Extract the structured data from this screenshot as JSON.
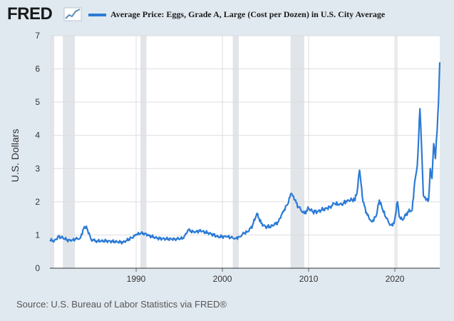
{
  "header": {
    "logo_text": "FRED",
    "logo_icon": "trend-line-icon"
  },
  "colors": {
    "background": "#e1e9f0",
    "plot_background": "#ffffff",
    "series_line": "#2b7bd6",
    "recession_band": "#e1e5ea",
    "grid": "#dddddd"
  },
  "footer": {
    "source": "Source: U.S. Bureau of Labor Statistics via FRED®"
  },
  "chart_data": {
    "type": "line",
    "title": "",
    "xlabel": "",
    "ylabel": "U.S. Dollars",
    "xlim": [
      1980.0,
      2025.2
    ],
    "ylim": [
      0,
      7
    ],
    "x_ticks": [
      "1990",
      "2000",
      "2010",
      "2020"
    ],
    "y_ticks": [
      "0",
      "1",
      "2",
      "3",
      "4",
      "5",
      "6",
      "7"
    ],
    "grid": true,
    "legend": "top",
    "recessions": [
      [
        1980.0,
        1980.5
      ],
      [
        1981.5,
        1982.9
      ],
      [
        1990.5,
        1991.2
      ],
      [
        2001.2,
        2001.9
      ],
      [
        2007.9,
        2009.5
      ],
      [
        2020.1,
        2020.3
      ]
    ],
    "series": [
      {
        "name": "Average Price: Eggs, Grade A, Large (Cost per Dozen) in U.S. City Average",
        "x": [
          1980.0,
          1980.5,
          1981.0,
          1981.5,
          1982.0,
          1982.5,
          1983.0,
          1983.5,
          1984.0,
          1984.3,
          1984.8,
          1985.5,
          1986.5,
          1987.5,
          1988.5,
          1989.5,
          1990.0,
          1990.5,
          1991.0,
          1991.5,
          1992.5,
          1993.5,
          1994.5,
          1995.5,
          1996.0,
          1996.7,
          1997.5,
          1998.5,
          1999.5,
          2000.5,
          2001.0,
          2001.5,
          2002.0,
          2002.5,
          2003.0,
          2003.5,
          2004.0,
          2004.5,
          2005.0,
          2005.5,
          2006.0,
          2006.5,
          2007.0,
          2007.5,
          2008.0,
          2008.4,
          2008.8,
          2009.5,
          2010.0,
          2010.5,
          2011.0,
          2011.5,
          2012.0,
          2012.5,
          2013.0,
          2013.5,
          2014.0,
          2014.5,
          2015.0,
          2015.3,
          2015.6,
          2015.9,
          2016.3,
          2016.8,
          2017.3,
          2017.8,
          2018.2,
          2018.6,
          2019.0,
          2019.5,
          2019.9,
          2020.3,
          2020.5,
          2020.9,
          2021.5,
          2022.0,
          2022.3,
          2022.6,
          2022.9,
          2023.1,
          2023.3,
          2023.6,
          2023.9,
          2024.1,
          2024.3,
          2024.5,
          2024.7,
          2024.9,
          2025.05,
          2025.2
        ],
        "values": [
          0.85,
          0.82,
          0.95,
          0.92,
          0.85,
          0.83,
          0.88,
          0.9,
          1.25,
          1.2,
          0.85,
          0.82,
          0.82,
          0.8,
          0.78,
          0.92,
          1.0,
          1.05,
          1.05,
          0.98,
          0.9,
          0.88,
          0.88,
          0.9,
          1.15,
          1.1,
          1.12,
          1.05,
          0.95,
          0.95,
          0.92,
          0.9,
          0.95,
          1.05,
          1.1,
          1.3,
          1.65,
          1.35,
          1.25,
          1.25,
          1.3,
          1.4,
          1.7,
          1.9,
          2.25,
          2.05,
          1.85,
          1.65,
          1.8,
          1.7,
          1.7,
          1.75,
          1.8,
          1.85,
          1.95,
          1.9,
          1.95,
          2.05,
          2.05,
          2.05,
          2.25,
          2.95,
          2.0,
          1.6,
          1.4,
          1.55,
          2.05,
          1.75,
          1.5,
          1.3,
          1.35,
          2.0,
          1.55,
          1.45,
          1.7,
          1.75,
          2.6,
          3.1,
          4.8,
          3.6,
          2.2,
          2.05,
          2.05,
          3.0,
          2.7,
          3.75,
          3.3,
          4.15,
          4.95,
          6.2
        ]
      }
    ]
  }
}
